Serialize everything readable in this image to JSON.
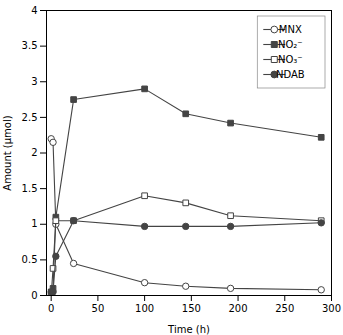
{
  "chart_data": {
    "type": "line",
    "xlabel": "Time (h)",
    "ylabel": "Amount (μmol)",
    "x": [
      0,
      2,
      5,
      24,
      100,
      144,
      192,
      289
    ],
    "series": [
      {
        "name": "MNX",
        "color": "#444444",
        "marker": "circle-open",
        "values": [
          2.2,
          2.15,
          1.0,
          0.45,
          0.18,
          0.13,
          0.1,
          0.08
        ]
      },
      {
        "name": "NO₂⁻",
        "color": "#444444",
        "marker": "square",
        "values": [
          0.05,
          0.1,
          1.1,
          2.75,
          2.9,
          2.55,
          2.42,
          2.22
        ]
      },
      {
        "name": "NO₃⁻",
        "color": "#444444",
        "marker": "square-open",
        "values": [
          0.0,
          0.38,
          1.05,
          1.05,
          1.4,
          1.3,
          1.12,
          1.05
        ]
      },
      {
        "name": "NDAB",
        "color": "#444444",
        "marker": "circle",
        "values": [
          0.05,
          0.05,
          0.55,
          1.05,
          0.97,
          0.97,
          0.97,
          1.02
        ]
      }
    ],
    "xlim": [
      -5,
      300
    ],
    "xticks": [
      0,
      50,
      100,
      150,
      200,
      250,
      300
    ],
    "ylim": [
      0,
      4
    ],
    "yticks": [
      0,
      0.5,
      1,
      1.5,
      2,
      2.5,
      3,
      3.5,
      4
    ],
    "grid": false,
    "legend": "upper right"
  }
}
